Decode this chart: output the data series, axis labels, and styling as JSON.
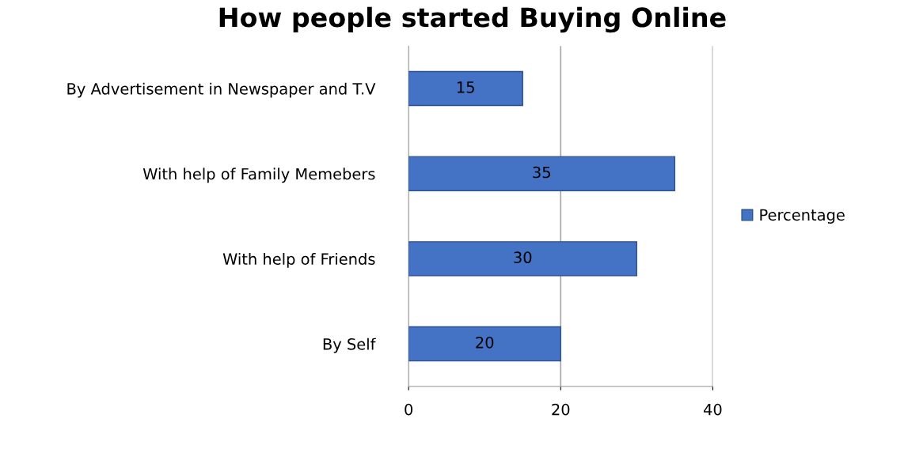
{
  "chart_data": {
    "type": "bar",
    "orientation": "horizontal",
    "title": "How people started Buying Online",
    "categories": [
      "By Advertisement in Newspaper and T.V",
      "With help of Family Memebers",
      "With help of Friends",
      "By Self"
    ],
    "series": [
      {
        "name": "Percentage",
        "color": "#4472c4",
        "values": [
          15,
          35,
          30,
          20
        ]
      }
    ],
    "xlim": [
      0,
      40
    ],
    "xticks": [
      0,
      20,
      40
    ],
    "grid": "x",
    "legend": "right",
    "data_labels": true
  }
}
